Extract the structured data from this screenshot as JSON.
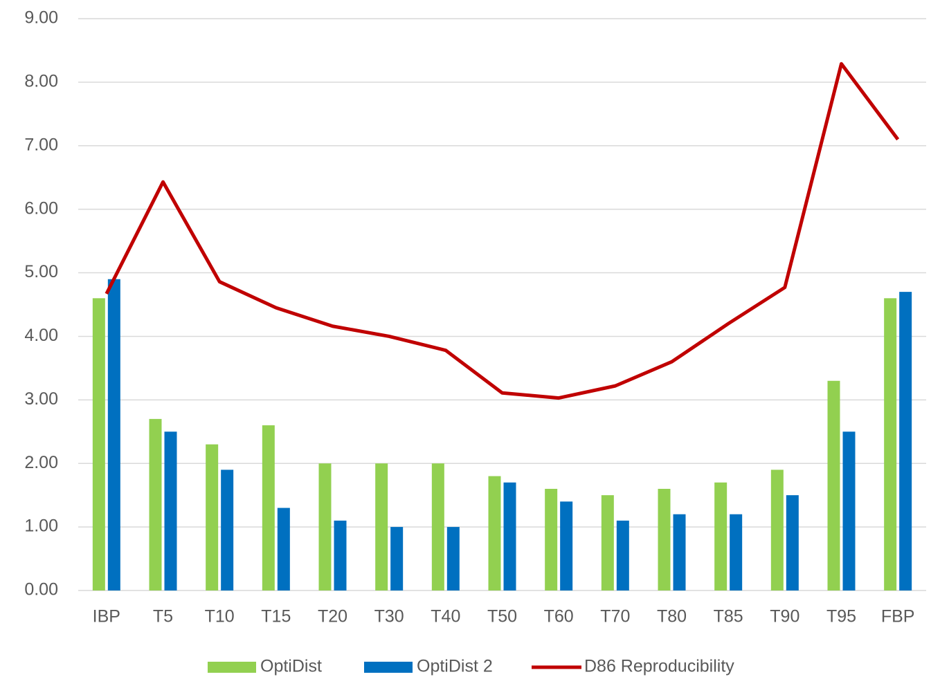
{
  "chart_data": {
    "type": "bar",
    "categories": [
      "IBP",
      "T5",
      "T10",
      "T15",
      "T20",
      "T30",
      "T40",
      "T50",
      "T60",
      "T70",
      "T80",
      "T85",
      "T90",
      "T95",
      "FBP"
    ],
    "series": [
      {
        "name": "OptiDist",
        "color": "#92d050",
        "values": [
          4.6,
          2.7,
          2.3,
          2.6,
          2.0,
          2.0,
          2.0,
          1.8,
          1.6,
          1.5,
          1.6,
          1.7,
          1.9,
          3.3,
          4.6
        ]
      },
      {
        "name": "OptiDist 2",
        "color": "#0070c0",
        "values": [
          4.9,
          2.5,
          1.9,
          1.3,
          1.1,
          1.0,
          1.0,
          1.7,
          1.4,
          1.1,
          1.2,
          1.2,
          1.5,
          2.5,
          4.7
        ]
      },
      {
        "name": "D86 Reproducibility",
        "color": "#c00000",
        "type": "line",
        "values": [
          4.67,
          6.43,
          4.86,
          4.45,
          4.16,
          4.0,
          3.78,
          3.11,
          3.03,
          3.22,
          3.6,
          4.2,
          4.77,
          8.29,
          7.1
        ]
      }
    ],
    "ylim": [
      0,
      9
    ],
    "yticks": [
      {
        "value": 0,
        "label": "0.00"
      },
      {
        "value": 1,
        "label": "1.00"
      },
      {
        "value": 2,
        "label": "2.00"
      },
      {
        "value": 3,
        "label": "3.00"
      },
      {
        "value": 4,
        "label": "4.00"
      },
      {
        "value": 5,
        "label": "5.00"
      },
      {
        "value": 6,
        "label": "6.00"
      },
      {
        "value": 7,
        "label": "7.00"
      },
      {
        "value": 8,
        "label": "8.00"
      },
      {
        "value": 9,
        "label": "9.00"
      }
    ],
    "grid": true,
    "legend": "bottom"
  }
}
